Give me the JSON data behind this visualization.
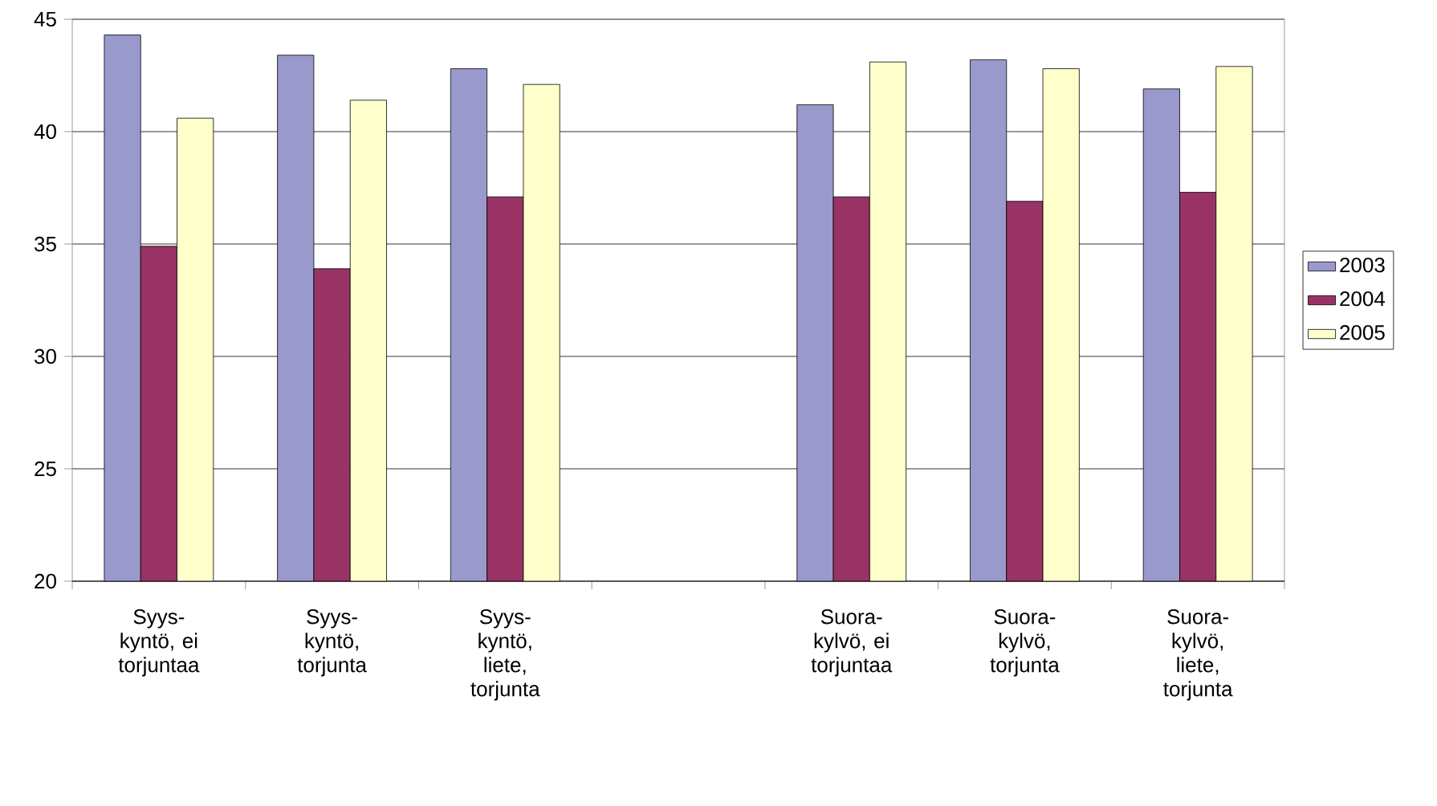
{
  "chart_data": {
    "type": "bar",
    "categories": [
      "Syys-kyntö, ei torjuntaa",
      "Syys-kyntö, torjunta",
      "Syys-kyntö, liete, torjunta",
      null,
      "Suora-kylvö, ei torjuntaa",
      "Suora-kylvö, torjunta",
      "Suora-kylvö, liete, torjunta"
    ],
    "series": [
      {
        "name": "2003",
        "color": "#9999cc",
        "values": [
          44.3,
          43.4,
          42.8,
          null,
          41.2,
          43.2,
          41.9
        ]
      },
      {
        "name": "2004",
        "color": "#993366",
        "values": [
          34.9,
          33.9,
          37.1,
          null,
          37.1,
          36.9,
          37.3
        ]
      },
      {
        "name": "2005",
        "color": "#ffffcc",
        "values": [
          40.6,
          41.4,
          42.1,
          null,
          43.1,
          42.8,
          42.9
        ]
      }
    ],
    "ylim": [
      20,
      45
    ],
    "yticks": [
      20,
      25,
      30,
      35,
      40,
      45
    ],
    "grid": "y",
    "legend": "right"
  }
}
